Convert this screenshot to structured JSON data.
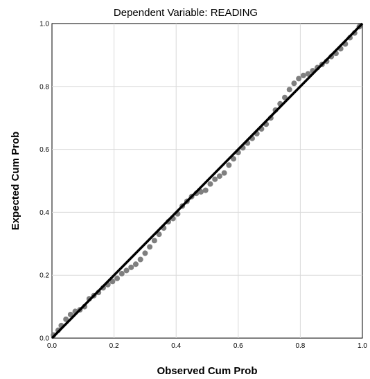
{
  "chart_data": {
    "type": "scatter",
    "title": "Dependent Variable: READING",
    "xlabel": "Observed Cum Prob",
    "ylabel": "Expected Cum Prob",
    "xlim": [
      0.0,
      1.0
    ],
    "ylim": [
      0.0,
      1.0
    ],
    "x_ticks": [
      "0.0",
      "0.2",
      "0.4",
      "0.6",
      "0.8",
      "1.0"
    ],
    "y_ticks": [
      "0.0",
      "0.2",
      "0.4",
      "0.6",
      "0.8",
      "1.0"
    ],
    "grid": true,
    "reference_line": {
      "from": [
        0.0,
        0.0
      ],
      "to": [
        1.0,
        1.0
      ]
    },
    "point_color": "#7f7f7f",
    "line_color": "#000000",
    "series": [
      {
        "x": [
          0.005,
          0.02,
          0.03,
          0.045,
          0.06,
          0.075,
          0.09,
          0.105,
          0.12,
          0.135,
          0.15,
          0.165,
          0.18,
          0.195,
          0.21,
          0.225,
          0.24,
          0.255,
          0.27,
          0.285,
          0.3,
          0.315,
          0.33,
          0.345,
          0.36,
          0.375,
          0.39,
          0.405,
          0.42,
          0.435,
          0.45,
          0.465,
          0.48,
          0.495,
          0.51,
          0.525,
          0.54,
          0.555,
          0.57,
          0.585,
          0.6,
          0.615,
          0.63,
          0.645,
          0.66,
          0.675,
          0.69,
          0.705,
          0.72,
          0.735,
          0.75,
          0.765,
          0.78,
          0.795,
          0.81,
          0.825,
          0.84,
          0.855,
          0.87,
          0.885,
          0.9,
          0.915,
          0.93,
          0.945,
          0.96,
          0.975,
          0.99
        ],
        "y": [
          0.01,
          0.025,
          0.04,
          0.06,
          0.075,
          0.085,
          0.09,
          0.1,
          0.125,
          0.135,
          0.145,
          0.16,
          0.17,
          0.18,
          0.19,
          0.205,
          0.215,
          0.225,
          0.235,
          0.25,
          0.27,
          0.29,
          0.31,
          0.33,
          0.35,
          0.37,
          0.38,
          0.395,
          0.42,
          0.435,
          0.45,
          0.46,
          0.465,
          0.47,
          0.49,
          0.505,
          0.515,
          0.525,
          0.55,
          0.57,
          0.59,
          0.605,
          0.62,
          0.635,
          0.65,
          0.665,
          0.68,
          0.7,
          0.725,
          0.745,
          0.765,
          0.79,
          0.81,
          0.825,
          0.835,
          0.84,
          0.85,
          0.86,
          0.87,
          0.88,
          0.895,
          0.905,
          0.92,
          0.935,
          0.955,
          0.97,
          0.99
        ]
      }
    ]
  }
}
